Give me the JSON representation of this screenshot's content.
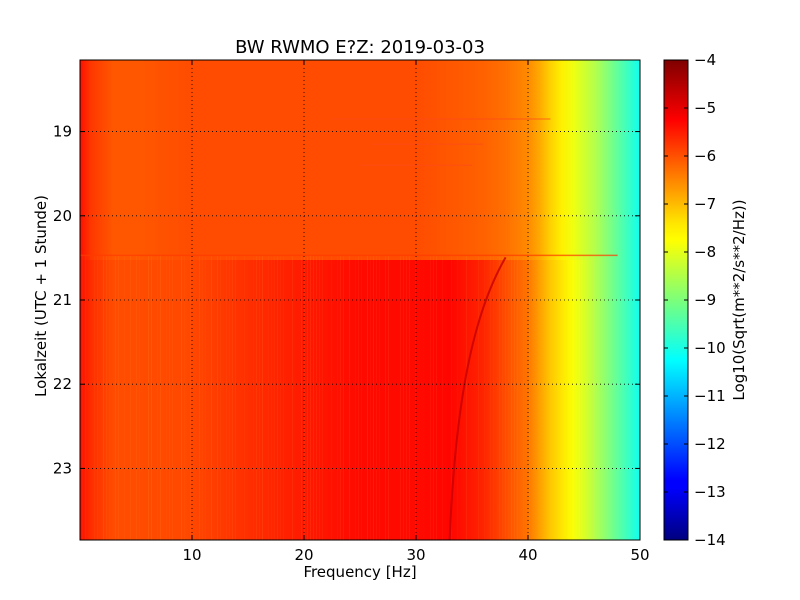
{
  "chart_data": {
    "type": "heatmap",
    "title": "BW RWMO E?Z: 2019-03-03",
    "xlabel": "Frequency [Hz]",
    "ylabel": "Lokalzeit (UTC + 1 Stunde)",
    "xlim": [
      0,
      50
    ],
    "ylim": [
      18.15,
      23.85
    ],
    "y_inverted": true,
    "x_ticks": [
      10,
      20,
      30,
      40,
      50
    ],
    "y_ticks": [
      19,
      20,
      21,
      22,
      23
    ],
    "grid": true,
    "grid_style": "dotted",
    "colormap": "jet",
    "colorbar": {
      "label": "Log10(Sqrt(m**2/s**2/Hz))",
      "range": [
        -14,
        -4
      ],
      "ticks": [
        -4,
        -5,
        -6,
        -7,
        -8,
        -9,
        -10,
        -11,
        -12,
        -13,
        -14
      ]
    },
    "regime_change_time": 20.47,
    "spectrum_before": {
      "freq": [
        0,
        1,
        3,
        5,
        10,
        20,
        30,
        36,
        38,
        40,
        41,
        42,
        43,
        44,
        45,
        46,
        47,
        48,
        49,
        50
      ],
      "log10_amp": [
        -5.4,
        -5.8,
        -6.1,
        -6.1,
        -6.0,
        -6.0,
        -6.0,
        -6.2,
        -6.35,
        -6.6,
        -6.9,
        -7.3,
        -7.6,
        -7.9,
        -8.2,
        -8.5,
        -8.9,
        -9.3,
        -9.7,
        -10.1
      ]
    },
    "spectrum_after": {
      "freq": [
        0,
        1,
        3,
        5,
        10,
        14,
        20,
        25,
        30,
        33,
        36,
        38,
        40,
        41,
        42,
        43,
        44,
        45,
        46,
        47,
        48,
        49,
        50
      ],
      "log10_amp": [
        -5.4,
        -5.7,
        -6.0,
        -6.0,
        -5.95,
        -5.75,
        -5.5,
        -5.35,
        -5.35,
        -5.3,
        -5.6,
        -6.0,
        -6.4,
        -6.8,
        -7.2,
        -7.5,
        -7.8,
        -8.1,
        -8.5,
        -8.9,
        -9.3,
        -9.7,
        -10.1
      ]
    }
  }
}
